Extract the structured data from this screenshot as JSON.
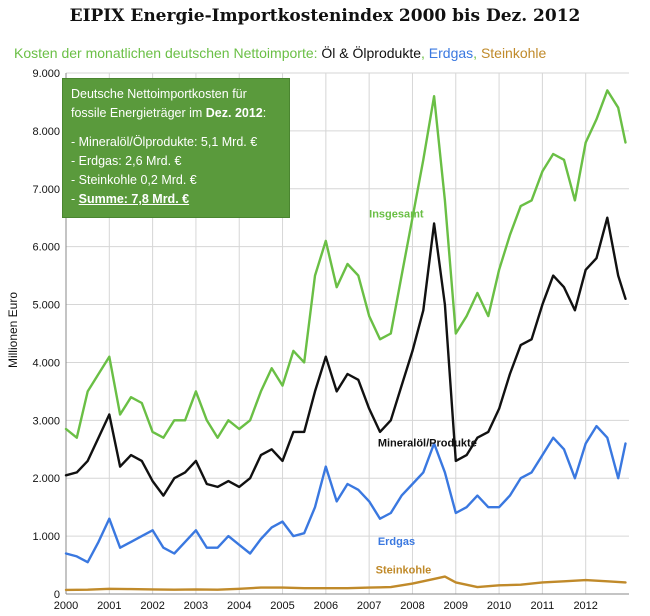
{
  "title": "EIPIX Energie-Importkostenindex 2000 bis Dez. 2012",
  "subtitle": {
    "prefix": "Kosten der monatlichen deutschen Nettoimporte: ",
    "oil": "Öl & Ölprodukte",
    "sep1": ", ",
    "gas": "Erdgas",
    "sep2": ", ",
    "coal": "Steinkohle"
  },
  "colors": {
    "prefix": "#6abf45",
    "oil": "#111111",
    "gas": "#3a78e0",
    "coal": "#c08a2a",
    "infobox_bg": "#5a9a3c"
  },
  "info_box": {
    "line1": "Deutsche Nettoimportkosten für",
    "line2_prefix": "fossile Energieträger im ",
    "line2_bold": "Dez. 2012",
    "line2_suffix": ":",
    "item1": "- Mineralöl/Ölprodukte: 5,1 Mrd. €",
    "item2": "- Erdgas: 2,6 Mrd. €",
    "item3": "- Steinkohle 0,2 Mrd. €",
    "item4_prefix": "- ",
    "item4_total": "Summe: 7,8 Mrd. €"
  },
  "chart_data": {
    "type": "line",
    "title": "EIPIX Energie-Importkostenindex 2000 bis Dez. 2012",
    "ylabel": "Millionen Euro",
    "xlabel": "",
    "ylim": [
      0,
      9000
    ],
    "xlim": [
      2000,
      2013
    ],
    "y_ticks": [
      0,
      1000,
      2000,
      3000,
      4000,
      5000,
      6000,
      7000,
      8000,
      9000
    ],
    "y_tick_labels": [
      "0",
      "1.000",
      "2.000",
      "3.000",
      "4.000",
      "5.000",
      "6.000",
      "7.000",
      "8.000",
      "9.000"
    ],
    "x_ticks": [
      2000,
      2001,
      2002,
      2003,
      2004,
      2005,
      2006,
      2007,
      2008,
      2009,
      2010,
      2011,
      2012
    ],
    "x_tick_labels": [
      "2000",
      "2001",
      "2002",
      "2003",
      "2004",
      "2005",
      "2006",
      "2007",
      "2008",
      "2009",
      "2010",
      "2011",
      "2012"
    ],
    "grid": true,
    "legend": "subtitle",
    "series": [
      {
        "name": "Insgesamt",
        "color": "#6abf45",
        "x": [
          2000.0,
          2000.25,
          2000.5,
          2000.75,
          2001.0,
          2001.25,
          2001.5,
          2001.75,
          2002.0,
          2002.25,
          2002.5,
          2002.75,
          2003.0,
          2003.25,
          2003.5,
          2003.75,
          2004.0,
          2004.25,
          2004.5,
          2004.75,
          2005.0,
          2005.25,
          2005.5,
          2005.75,
          2006.0,
          2006.25,
          2006.5,
          2006.75,
          2007.0,
          2007.25,
          2007.5,
          2007.75,
          2008.0,
          2008.25,
          2008.5,
          2008.75,
          2009.0,
          2009.25,
          2009.5,
          2009.75,
          2010.0,
          2010.25,
          2010.5,
          2010.75,
          2011.0,
          2011.25,
          2011.5,
          2011.75,
          2012.0,
          2012.25,
          2012.5,
          2012.75,
          2012.92
        ],
        "values": [
          2850,
          2700,
          3500,
          3800,
          4100,
          3100,
          3400,
          3300,
          2800,
          2700,
          3000,
          3000,
          3500,
          3000,
          2700,
          3000,
          2850,
          3000,
          3500,
          3900,
          3600,
          4200,
          4000,
          5500,
          6100,
          5300,
          5700,
          5500,
          4800,
          4400,
          4500,
          5500,
          6500,
          7500,
          8600,
          6800,
          4500,
          4800,
          5200,
          4800,
          5600,
          6200,
          6700,
          6800,
          7300,
          7600,
          7500,
          6800,
          7800,
          8200,
          8700,
          8400,
          7800
        ]
      },
      {
        "name": "Mineralöl/Produkte",
        "color": "#111111",
        "x": [
          2000.0,
          2000.25,
          2000.5,
          2000.75,
          2001.0,
          2001.25,
          2001.5,
          2001.75,
          2002.0,
          2002.25,
          2002.5,
          2002.75,
          2003.0,
          2003.25,
          2003.5,
          2003.75,
          2004.0,
          2004.25,
          2004.5,
          2004.75,
          2005.0,
          2005.25,
          2005.5,
          2005.75,
          2006.0,
          2006.25,
          2006.5,
          2006.75,
          2007.0,
          2007.25,
          2007.5,
          2007.75,
          2008.0,
          2008.25,
          2008.5,
          2008.75,
          2009.0,
          2009.25,
          2009.5,
          2009.75,
          2010.0,
          2010.25,
          2010.5,
          2010.75,
          2011.0,
          2011.25,
          2011.5,
          2011.75,
          2012.0,
          2012.25,
          2012.5,
          2012.75,
          2012.92
        ],
        "values": [
          2050,
          2100,
          2300,
          2700,
          3100,
          2200,
          2400,
          2300,
          1950,
          1700,
          2000,
          2100,
          2300,
          1900,
          1850,
          1950,
          1850,
          2000,
          2400,
          2500,
          2300,
          2800,
          2800,
          3500,
          4100,
          3500,
          3800,
          3700,
          3200,
          2800,
          3000,
          3600,
          4200,
          4900,
          6400,
          5000,
          2300,
          2400,
          2700,
          2800,
          3200,
          3800,
          4300,
          4400,
          5000,
          5500,
          5300,
          4900,
          5600,
          5800,
          6500,
          5500,
          5100
        ]
      },
      {
        "name": "Erdgas",
        "color": "#3a78e0",
        "x": [
          2000.0,
          2000.25,
          2000.5,
          2000.75,
          2001.0,
          2001.25,
          2001.5,
          2001.75,
          2002.0,
          2002.25,
          2002.5,
          2002.75,
          2003.0,
          2003.25,
          2003.5,
          2003.75,
          2004.0,
          2004.25,
          2004.5,
          2004.75,
          2005.0,
          2005.25,
          2005.5,
          2005.75,
          2006.0,
          2006.25,
          2006.5,
          2006.75,
          2007.0,
          2007.25,
          2007.5,
          2007.75,
          2008.0,
          2008.25,
          2008.5,
          2008.75,
          2009.0,
          2009.25,
          2009.5,
          2009.75,
          2010.0,
          2010.25,
          2010.5,
          2010.75,
          2011.0,
          2011.25,
          2011.5,
          2011.75,
          2012.0,
          2012.25,
          2012.5,
          2012.75,
          2012.92
        ],
        "values": [
          700,
          650,
          550,
          900,
          1300,
          800,
          900,
          1000,
          1100,
          800,
          700,
          900,
          1100,
          800,
          800,
          1000,
          850,
          700,
          950,
          1150,
          1250,
          1000,
          1050,
          1500,
          2200,
          1600,
          1900,
          1800,
          1600,
          1300,
          1400,
          1700,
          1900,
          2100,
          2600,
          2100,
          1400,
          1500,
          1700,
          1500,
          1500,
          1700,
          2000,
          2100,
          2400,
          2700,
          2500,
          2000,
          2600,
          2900,
          2700,
          2000,
          2600
        ]
      },
      {
        "name": "Steinkohle",
        "color": "#c08a2a",
        "x": [
          2000.0,
          2000.5,
          2001.0,
          2001.5,
          2002.0,
          2002.5,
          2003.0,
          2003.5,
          2004.0,
          2004.5,
          2005.0,
          2005.5,
          2006.0,
          2006.5,
          2007.0,
          2007.5,
          2008.0,
          2008.5,
          2008.75,
          2009.0,
          2009.5,
          2010.0,
          2010.5,
          2011.0,
          2011.5,
          2012.0,
          2012.5,
          2012.92
        ],
        "values": [
          70,
          75,
          90,
          85,
          80,
          75,
          80,
          75,
          90,
          110,
          110,
          100,
          100,
          100,
          110,
          120,
          180,
          260,
          300,
          200,
          120,
          150,
          160,
          200,
          220,
          240,
          220,
          200
        ]
      }
    ],
    "annotations": [
      {
        "text": "Insgesamt",
        "color": "#6abf45",
        "x": 2007.0,
        "y": 6500
      },
      {
        "text": "Mineralöl/Produkte",
        "color": "#111111",
        "x": 2007.2,
        "y": 2550
      },
      {
        "text": "Erdgas",
        "color": "#3a78e0",
        "x": 2007.2,
        "y": 850
      },
      {
        "text": "Steinkohle",
        "color": "#c08a2a",
        "x": 2007.15,
        "y": 350
      }
    ]
  }
}
